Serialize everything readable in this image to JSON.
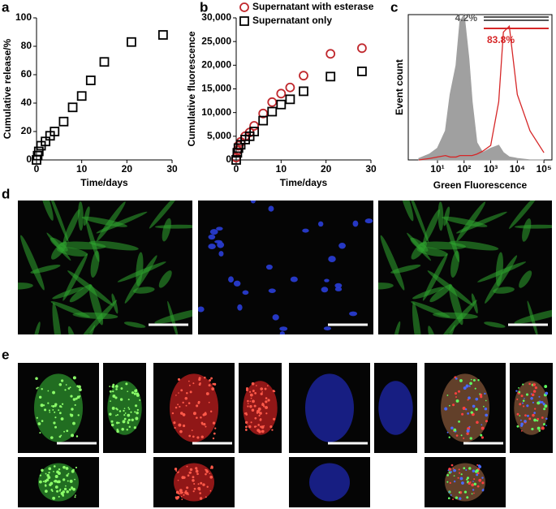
{
  "panels": [
    "a",
    "b",
    "c",
    "d",
    "e"
  ],
  "chart_data": [
    {
      "type": "scatter",
      "xlabel": "Time/days",
      "ylabel": "Cumulative release/%",
      "x": [
        0,
        0.25,
        0.5,
        1,
        2,
        3,
        4,
        6,
        8,
        10,
        12,
        15,
        21,
        28
      ],
      "values": [
        0,
        3,
        6,
        10,
        13,
        17,
        20,
        27,
        37,
        45,
        56,
        69,
        83,
        88
      ],
      "color": "#000000",
      "marker": "square",
      "xlim": [
        0,
        30
      ],
      "xticks": [
        0,
        10,
        20,
        30
      ],
      "ylim": [
        0,
        100
      ],
      "yticks": [
        0,
        20,
        40,
        60,
        80,
        100
      ]
    },
    {
      "type": "scatter",
      "xlabel": "Time/days",
      "ylabel": "Cumulative fluorescence",
      "x": [
        0,
        0.25,
        0.5,
        1,
        2,
        3,
        4,
        6,
        8,
        10,
        12,
        15,
        21,
        28
      ],
      "series": [
        {
          "name": "Supernatant with esterase",
          "color": "#c0282d",
          "marker": "circle",
          "values": [
            500,
            2000,
            3000,
            3800,
            5000,
            5800,
            7200,
            9800,
            12200,
            14000,
            15300,
            17800,
            22400,
            23600
          ]
        },
        {
          "name": "Supernatant only",
          "color": "#000000",
          "marker": "square",
          "values": [
            0,
            1500,
            2500,
            3200,
            4300,
            5000,
            6000,
            8300,
            10200,
            11700,
            12800,
            14500,
            17600,
            18700
          ]
        }
      ],
      "xlim": [
        0,
        30
      ],
      "xticks": [
        0,
        10,
        20,
        30
      ],
      "ylim": [
        0,
        30000
      ],
      "yticks": [
        0,
        {
          "value": 5000,
          "label": "5,000"
        },
        {
          "value": 10000,
          "label": "10,000"
        },
        {
          "value": 15000,
          "label": "15,000"
        },
        {
          "value": 20000,
          "label": "20,000"
        },
        {
          "value": 25000,
          "label": "25,000"
        },
        {
          "value": 30000,
          "label": "30,000"
        }
      ],
      "legend": "upper left"
    },
    {
      "type": "area",
      "xlabel": "Green Fluorescence",
      "ylabel": "Event count",
      "xscale": "log",
      "x": [
        2,
        5,
        10,
        20,
        30,
        50,
        70,
        100,
        150,
        200,
        300,
        500,
        1000,
        2000,
        3000,
        5000,
        10000,
        30000,
        100000
      ],
      "series": [
        {
          "color": "#a0a0a0",
          "style": "fill",
          "values": [
            1,
            4,
            8,
            20,
            45,
            65,
            95,
            100,
            70,
            40,
            12,
            5,
            8,
            10,
            5,
            2,
            1,
            0,
            0
          ]
        },
        {
          "color": "#d62728",
          "style": "line",
          "values": [
            0,
            1,
            2,
            3,
            2,
            2,
            3,
            3,
            3,
            3,
            4,
            6,
            10,
            40,
            88,
            92,
            45,
            20,
            5
          ]
        }
      ],
      "annotations": [
        {
          "text": "4.2%",
          "color": "#555555"
        },
        {
          "text": "83.8%",
          "color": "#d62728"
        }
      ],
      "xlim": [
        0.8,
        200000
      ],
      "xticks": [
        {
          "value": 10,
          "label": "10¹"
        },
        {
          "value": 100,
          "label": "10²"
        },
        {
          "value": 1000,
          "label": "10³"
        },
        {
          "value": 10000,
          "label": "10⁴"
        },
        {
          "value": 100000,
          "label": "10⁵"
        }
      ],
      "ylim": [
        0,
        100
      ]
    }
  ]
}
